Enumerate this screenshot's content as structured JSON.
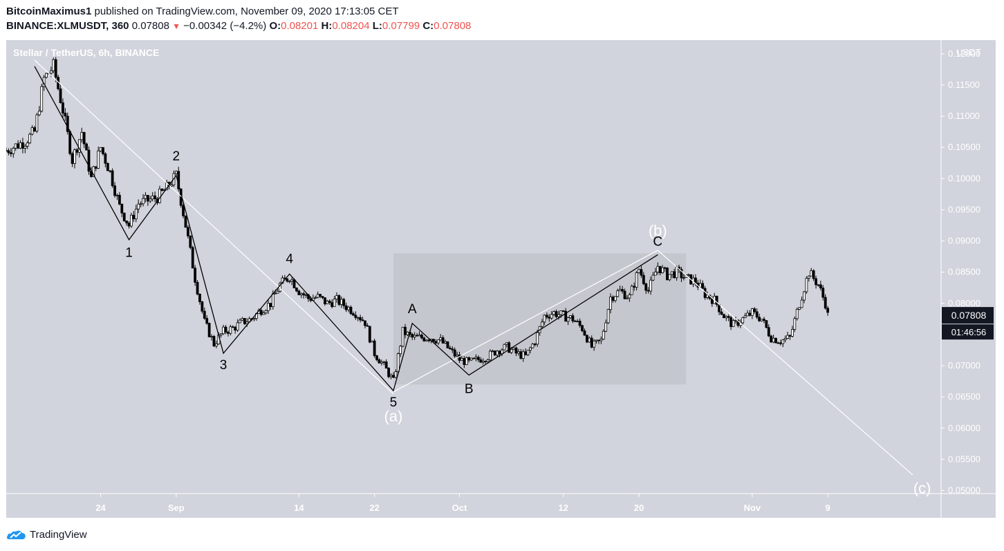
{
  "header": {
    "author": "BitcoinMaximus1",
    "published": "published on TradingView.com, November 09, 2020 17:13:05 CET",
    "symbol": "BINANCE:XLMUSDT, 360",
    "last": "0.07808",
    "change": "−0.00342 (−4.2%)",
    "o_label": "O:",
    "o_value": "0.08201",
    "h_label": "H:",
    "h_value": "0.08204",
    "l_label": "L:",
    "l_value": "0.07799",
    "c_label": "C:",
    "c_value": "0.07808"
  },
  "footer": {
    "brand": "TradingView",
    "icon": "tradingview-logo-icon"
  },
  "colors": {
    "chart_bg": "#d1d4dc",
    "candle": "#000000",
    "wave_line": "#000000",
    "trend_line": "#ffffff",
    "range_box": "#c2c4cb",
    "price_tag": "#131722"
  },
  "chart_data": {
    "type": "candlestick",
    "title": "Stellar / TetherUS, 6h, BINANCE",
    "ylabel": "USDT",
    "ylim": [
      0.0495,
      0.1222
    ],
    "y_ticks": [
      "0.05000",
      "0.05500",
      "0.06000",
      "0.06500",
      "0.07000",
      "0.07500",
      "0.08000",
      "0.08500",
      "0.09000",
      "0.09500",
      "0.10000",
      "0.10500",
      "0.11000",
      "0.11500",
      "0.12000"
    ],
    "x_range": [
      "2020-08-14",
      "2020-11-21"
    ],
    "x_ticks": [
      {
        "label": "24",
        "date": "2020-08-24"
      },
      {
        "label": "Sep",
        "date": "2020-09-01"
      },
      {
        "label": "14",
        "date": "2020-09-14"
      },
      {
        "label": "22",
        "date": "2020-09-22"
      },
      {
        "label": "Oct",
        "date": "2020-10-01"
      },
      {
        "label": "12",
        "date": "2020-10-12"
      },
      {
        "label": "20",
        "date": "2020-10-20"
      },
      {
        "label": "Nov",
        "date": "2020-11-01"
      },
      {
        "label": "9",
        "date": "2020-11-09"
      }
    ],
    "price_path": [
      [
        "2020-08-14",
        0.1045
      ],
      [
        "2020-08-16",
        0.106
      ],
      [
        "2020-08-17",
        0.1075
      ],
      [
        "2020-08-18",
        0.116
      ],
      [
        "2020-08-19",
        0.118
      ],
      [
        "2020-08-20",
        0.111
      ],
      [
        "2020-08-21",
        0.103
      ],
      [
        "2020-08-22",
        0.1075
      ],
      [
        "2020-08-23",
        0.1
      ],
      [
        "2020-08-24",
        0.105
      ],
      [
        "2020-08-25",
        0.101
      ],
      [
        "2020-08-26",
        0.0955
      ],
      [
        "2020-08-27",
        0.0925
      ],
      [
        "2020-08-28",
        0.096
      ],
      [
        "2020-08-29",
        0.0965
      ],
      [
        "2020-08-30",
        0.097
      ],
      [
        "2020-08-31",
        0.0985
      ],
      [
        "2020-09-01",
        0.1005
      ],
      [
        "2020-09-02",
        0.0925
      ],
      [
        "2020-09-03",
        0.084
      ],
      [
        "2020-09-04",
        0.077
      ],
      [
        "2020-09-05",
        0.0735
      ],
      [
        "2020-09-06",
        0.0755
      ],
      [
        "2020-09-07",
        0.076
      ],
      [
        "2020-09-08",
        0.077
      ],
      [
        "2020-09-09",
        0.0775
      ],
      [
        "2020-09-10",
        0.079
      ],
      [
        "2020-09-11",
        0.08
      ],
      [
        "2020-09-12",
        0.083
      ],
      [
        "2020-09-13",
        0.0843
      ],
      [
        "2020-09-14",
        0.082
      ],
      [
        "2020-09-15",
        0.0808
      ],
      [
        "2020-09-16",
        0.081
      ],
      [
        "2020-09-17",
        0.08
      ],
      [
        "2020-09-18",
        0.0805
      ],
      [
        "2020-09-19",
        0.0795
      ],
      [
        "2020-09-20",
        0.0785
      ],
      [
        "2020-09-21",
        0.077
      ],
      [
        "2020-09-22",
        0.072
      ],
      [
        "2020-09-23",
        0.07
      ],
      [
        "2020-09-24",
        0.0675
      ],
      [
        "2020-09-25",
        0.0755
      ],
      [
        "2020-09-26",
        0.0745
      ],
      [
        "2020-09-27",
        0.0745
      ],
      [
        "2020-09-28",
        0.0745
      ],
      [
        "2020-09-29",
        0.074
      ],
      [
        "2020-09-30",
        0.0725
      ],
      [
        "2020-10-01",
        0.071
      ],
      [
        "2020-10-02",
        0.0705
      ],
      [
        "2020-10-03",
        0.071
      ],
      [
        "2020-10-04",
        0.0715
      ],
      [
        "2020-10-05",
        0.0725
      ],
      [
        "2020-10-06",
        0.073
      ],
      [
        "2020-10-07",
        0.072
      ],
      [
        "2020-10-08",
        0.0715
      ],
      [
        "2020-10-09",
        0.074
      ],
      [
        "2020-10-10",
        0.078
      ],
      [
        "2020-10-11",
        0.0785
      ],
      [
        "2020-10-12",
        0.078
      ],
      [
        "2020-10-13",
        0.0775
      ],
      [
        "2020-10-14",
        0.076
      ],
      [
        "2020-10-15",
        0.073
      ],
      [
        "2020-10-16",
        0.074
      ],
      [
        "2020-10-17",
        0.081
      ],
      [
        "2020-10-18",
        0.082
      ],
      [
        "2020-10-19",
        0.081
      ],
      [
        "2020-10-20",
        0.0855
      ],
      [
        "2020-10-21",
        0.082
      ],
      [
        "2020-10-22",
        0.086
      ],
      [
        "2020-10-23",
        0.0845
      ],
      [
        "2020-10-24",
        0.085
      ],
      [
        "2020-10-25",
        0.084
      ],
      [
        "2020-10-26",
        0.0835
      ],
      [
        "2020-10-27",
        0.0815
      ],
      [
        "2020-10-28",
        0.0805
      ],
      [
        "2020-10-29",
        0.078
      ],
      [
        "2020-10-30",
        0.0765
      ],
      [
        "2020-10-31",
        0.0775
      ],
      [
        "2020-11-01",
        0.0785
      ],
      [
        "2020-11-02",
        0.0775
      ],
      [
        "2020-11-03",
        0.0745
      ],
      [
        "2020-11-04",
        0.074
      ],
      [
        "2020-11-05",
        0.0745
      ],
      [
        "2020-11-06",
        0.08
      ],
      [
        "2020-11-07",
        0.085
      ],
      [
        "2020-11-08",
        0.083
      ],
      [
        "2020-11-09",
        0.079
      ]
    ],
    "range_box": {
      "from": "2020-09-24",
      "to": "2020-10-25",
      "top": 0.088,
      "bottom": 0.067
    },
    "wave_path": [
      [
        "2020-08-17",
        0.118
      ],
      [
        "2020-08-27",
        0.0902
      ],
      [
        "2020-09-01",
        0.1005
      ],
      [
        "2020-09-06",
        0.072
      ],
      [
        "2020-09-13",
        0.0847
      ],
      [
        "2020-09-24",
        0.066
      ],
      [
        "2020-09-26",
        0.0768
      ],
      [
        "2020-10-02",
        0.0685
      ],
      [
        "2020-10-22",
        0.0878
      ]
    ],
    "trend_lines": [
      {
        "from": [
          "2020-08-17",
          0.119
        ],
        "to": [
          "2020-09-24",
          0.0655
        ]
      },
      {
        "from": [
          "2020-09-24",
          0.0658
        ],
        "to": [
          "2020-10-22",
          0.0885
        ]
      },
      {
        "from": [
          "2020-10-22",
          0.0885
        ],
        "to": [
          "2020-11-18",
          0.0525
        ]
      }
    ],
    "wave_labels": [
      {
        "text": "1",
        "date": "2020-08-27",
        "price": 0.088,
        "color": "#000000"
      },
      {
        "text": "2",
        "date": "2020-09-01",
        "price": 0.1035,
        "color": "#000000"
      },
      {
        "text": "3",
        "date": "2020-09-06",
        "price": 0.07,
        "color": "#000000"
      },
      {
        "text": "4",
        "date": "2020-09-13",
        "price": 0.087,
        "color": "#000000"
      },
      {
        "text": "5",
        "date": "2020-09-24",
        "price": 0.064,
        "color": "#000000"
      },
      {
        "text": "(a)",
        "date": "2020-09-24",
        "price": 0.0617,
        "color": "#ffffff"
      },
      {
        "text": "A",
        "date": "2020-09-26",
        "price": 0.079,
        "color": "#000000"
      },
      {
        "text": "B",
        "date": "2020-10-02",
        "price": 0.0662,
        "color": "#000000"
      },
      {
        "text": "C",
        "date": "2020-10-22",
        "price": 0.0898,
        "color": "#000000"
      },
      {
        "text": "(b)",
        "date": "2020-10-22",
        "price": 0.0915,
        "color": "#ffffff"
      },
      {
        "text": "(c)",
        "date": "2020-11-19",
        "price": 0.0502,
        "color": "#ffffff"
      }
    ],
    "last_price": {
      "value": 0.07808,
      "label": "0.07808",
      "countdown": "01:46:56"
    }
  }
}
